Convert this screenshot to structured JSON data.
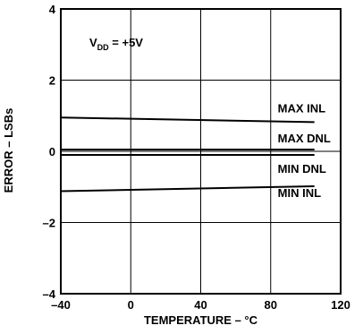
{
  "chart_data": {
    "type": "line",
    "title": "",
    "xlabel": "TEMPERATURE – °C",
    "ylabel": "ERROR – LSBs",
    "xlim": [
      -40,
      120
    ],
    "ylim": [
      -4,
      4
    ],
    "grid": true,
    "x_ticks": [
      -40,
      0,
      40,
      80,
      120
    ],
    "y_ticks": [
      -4,
      -2,
      0,
      2,
      4
    ],
    "x_tick_labels": [
      "–40",
      "0",
      "40",
      "80",
      "120"
    ],
    "y_tick_labels": [
      "–4",
      "–2",
      "0",
      "2",
      "4"
    ],
    "annotation": {
      "main": "V",
      "sub": "DD",
      "rest": " = +5V"
    },
    "series": [
      {
        "name": "MAX INL",
        "x": [
          -40,
          105
        ],
        "y": [
          0.95,
          0.82
        ]
      },
      {
        "name": "MAX DNL",
        "x": [
          -40,
          105
        ],
        "y": [
          0.05,
          0.05
        ]
      },
      {
        "name": "MIN DNL",
        "x": [
          -40,
          105
        ],
        "y": [
          -0.1,
          -0.1
        ]
      },
      {
        "name": "MIN INL",
        "x": [
          -40,
          105
        ],
        "y": [
          -1.12,
          -0.98
        ]
      }
    ]
  }
}
